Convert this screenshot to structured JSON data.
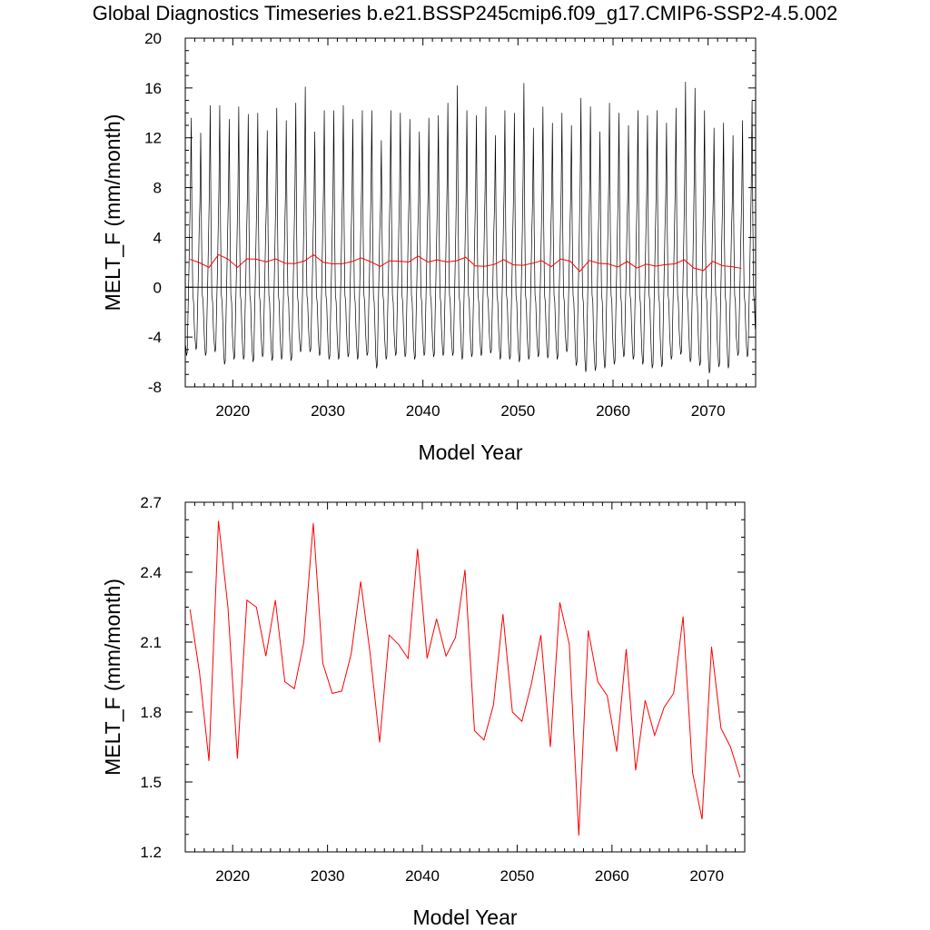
{
  "title": "Global Diagnostics Timeseries b.e21.BSSP245cmip6.f09_g17.CMIP6-SSP2-4.5.002",
  "colors": {
    "monthly": "#000000",
    "annual": "#ff0000",
    "zero_line": "#000000"
  },
  "chart_data": [
    {
      "type": "line",
      "xlabel": "Model Year",
      "ylabel": "MELT_F (mm/month)",
      "xlim": [
        2015,
        2075
      ],
      "ylim": [
        -8,
        20
      ],
      "xticks": [
        2020,
        2030,
        2040,
        2050,
        2060,
        2070
      ],
      "yticks": [
        -8,
        -4,
        0,
        4,
        8,
        12,
        16,
        20
      ],
      "reference_line_y": 0,
      "annual_peaks_approx": [
        13.6,
        12.4,
        14.6,
        14.6,
        13.5,
        14.5,
        13.9,
        14.0,
        12.6,
        14.4,
        13.4,
        14.8,
        16.1,
        12.5,
        14.2,
        14.2,
        14.6,
        13.5,
        14.2,
        14.2,
        11.8,
        14.2,
        14.0,
        13.5,
        12.5,
        13.6,
        13.8,
        14.8,
        16.2,
        14.2,
        13.8,
        14.5,
        12.2,
        14.2,
        14.0,
        16.4,
        12.8,
        14.5,
        13.2,
        14.0,
        13.0,
        15.2,
        14.5,
        12.5,
        14.8,
        14.0,
        13.0,
        14.2,
        13.8,
        14.2,
        13.2,
        14.4,
        16.5,
        16.0,
        14.2,
        12.8,
        13.2,
        12.2,
        13.4,
        15.0
      ],
      "annual_minima_approx": [
        -5.5,
        -5.0,
        -5.5,
        -5.2,
        -6.2,
        -5.8,
        -5.8,
        -6.0,
        -5.6,
        -5.9,
        -5.8,
        -5.9,
        -5.2,
        -5.2,
        -5.5,
        -5.8,
        -5.8,
        -5.6,
        -5.8,
        -5.5,
        -6.5,
        -5.8,
        -5.5,
        -5.6,
        -5.8,
        -5.5,
        -5.6,
        -5.5,
        -5.5,
        -5.8,
        -5.6,
        -5.5,
        -5.3,
        -5.8,
        -5.8,
        -6.0,
        -5.8,
        -5.6,
        -5.7,
        -5.8,
        -5.2,
        -6.3,
        -6.8,
        -6.7,
        -6.5,
        -6.2,
        -5.6,
        -5.8,
        -6.2,
        -6.5,
        -6.4,
        -5.8,
        -5.4,
        -6.0,
        -6.3,
        -6.9,
        -6.4,
        -6.5,
        -5.5,
        -5.6
      ],
      "series": [
        {
          "name": "",
          "style": "monthly",
          "color": "#000000"
        },
        {
          "name": "",
          "style": "annual_mean",
          "color": "#ff0000"
        }
      ]
    },
    {
      "type": "line",
      "xlabel": "Model Year",
      "ylabel": "MELT_F (mm/month)",
      "xlim": [
        2015,
        2074
      ],
      "ylim": [
        1.2,
        2.7
      ],
      "xticks": [
        2020,
        2030,
        2040,
        2050,
        2060,
        2070
      ],
      "yticks": [
        1.2,
        1.5,
        1.8,
        2.1,
        2.4,
        2.7
      ],
      "series": [
        {
          "name": "",
          "color": "#ff0000",
          "x": [
            2015.5,
            2016.5,
            2017.5,
            2018.5,
            2019.5,
            2020.5,
            2021.5,
            2022.5,
            2023.5,
            2024.5,
            2025.5,
            2026.5,
            2027.5,
            2028.5,
            2029.5,
            2030.5,
            2031.5,
            2032.5,
            2033.5,
            2034.5,
            2035.5,
            2036.5,
            2037.5,
            2038.5,
            2039.5,
            2040.5,
            2041.5,
            2042.5,
            2043.5,
            2044.5,
            2045.5,
            2046.5,
            2047.5,
            2048.5,
            2049.5,
            2050.5,
            2051.5,
            2052.5,
            2053.5,
            2054.5,
            2055.5,
            2056.5,
            2057.5,
            2058.5,
            2059.5,
            2060.5,
            2061.5,
            2062.5,
            2063.5,
            2064.5,
            2065.5,
            2066.5,
            2067.5,
            2068.5,
            2069.5,
            2070.5,
            2071.5,
            2072.5,
            2073.5
          ],
          "values": [
            2.24,
            1.97,
            1.59,
            2.62,
            2.25,
            1.6,
            2.28,
            2.25,
            2.04,
            2.28,
            1.93,
            1.9,
            2.1,
            2.61,
            2.01,
            1.88,
            1.89,
            2.05,
            2.36,
            2.05,
            1.67,
            2.13,
            2.09,
            2.03,
            2.5,
            2.03,
            2.2,
            2.04,
            2.12,
            2.41,
            1.72,
            1.68,
            1.83,
            2.22,
            1.8,
            1.76,
            1.92,
            2.13,
            1.65,
            2.27,
            2.09,
            1.27,
            2.15,
            1.93,
            1.87,
            1.63,
            2.07,
            1.55,
            1.85,
            1.7,
            1.82,
            1.88,
            2.21,
            1.54,
            1.34,
            2.08,
            1.73,
            1.65,
            1.52
          ]
        }
      ]
    }
  ]
}
